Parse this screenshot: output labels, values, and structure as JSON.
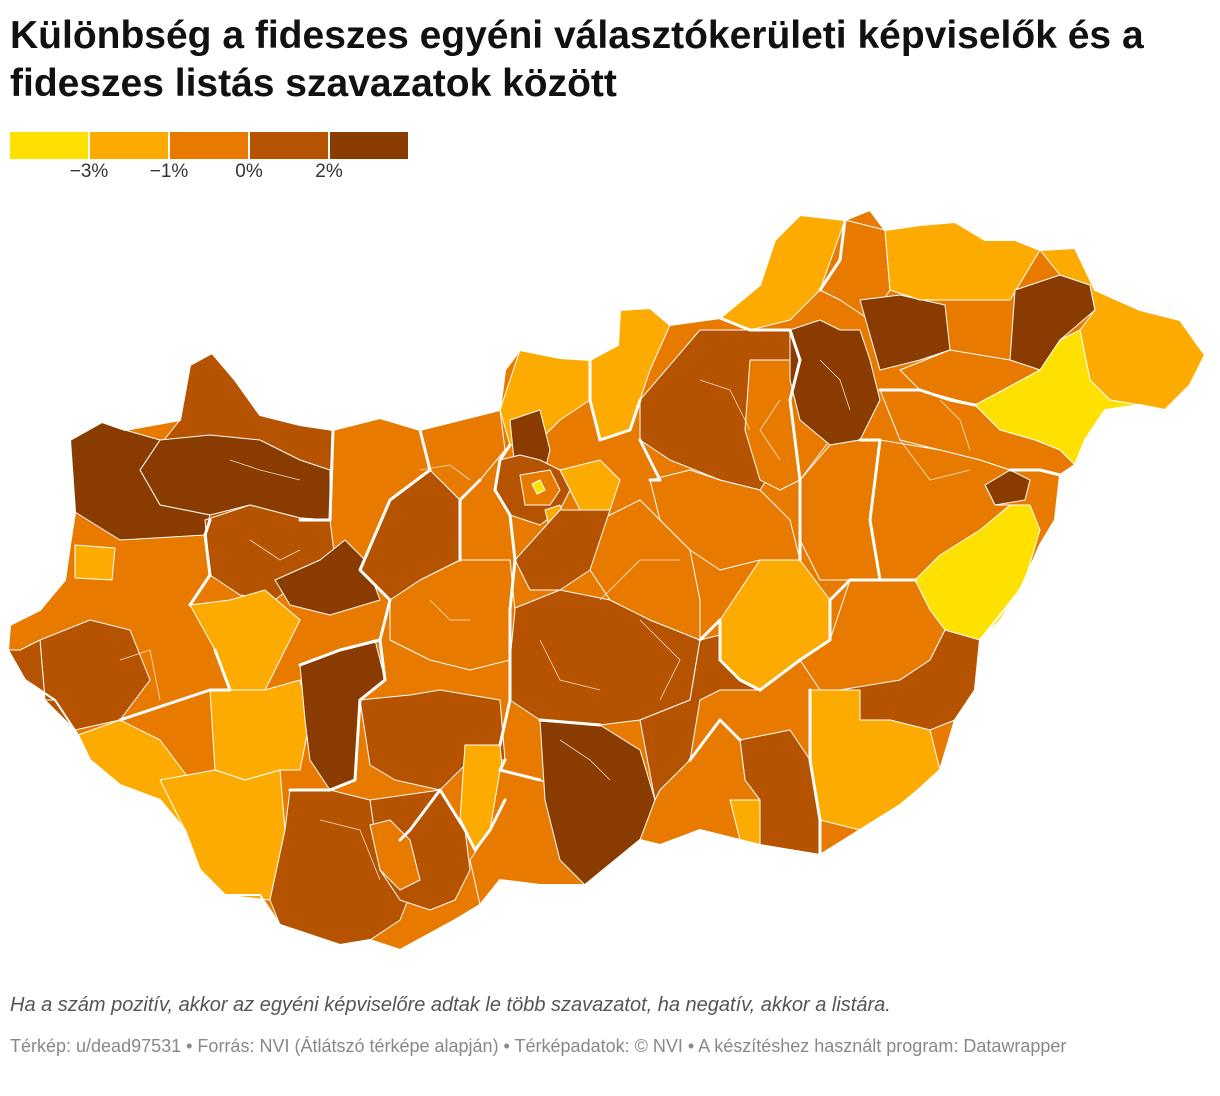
{
  "title": "Különbség a fideszes egyéni választókerületi képviselők és a fideszes listás szavazatok között",
  "legend": {
    "colors": [
      "#fee100",
      "#fdab00",
      "#e97a00",
      "#b55300",
      "#8a3c00"
    ],
    "ticks": [
      "−3%",
      "−1%",
      "0%",
      "2%"
    ]
  },
  "colors": {
    "border_county": "#ffffff",
    "border_district": "#ffffff"
  },
  "note": "Ha a szám pozitív, akkor az egyéni képviselőre adtak le több szavazatot, ha negatív, akkor a listára.",
  "credits": "Térkép: u/dead97531 • Forrás: NVI (Átlátszó térképe alapján) • Térképadatok: © NVI  • A készítéshez használt program: Datawrapper"
}
